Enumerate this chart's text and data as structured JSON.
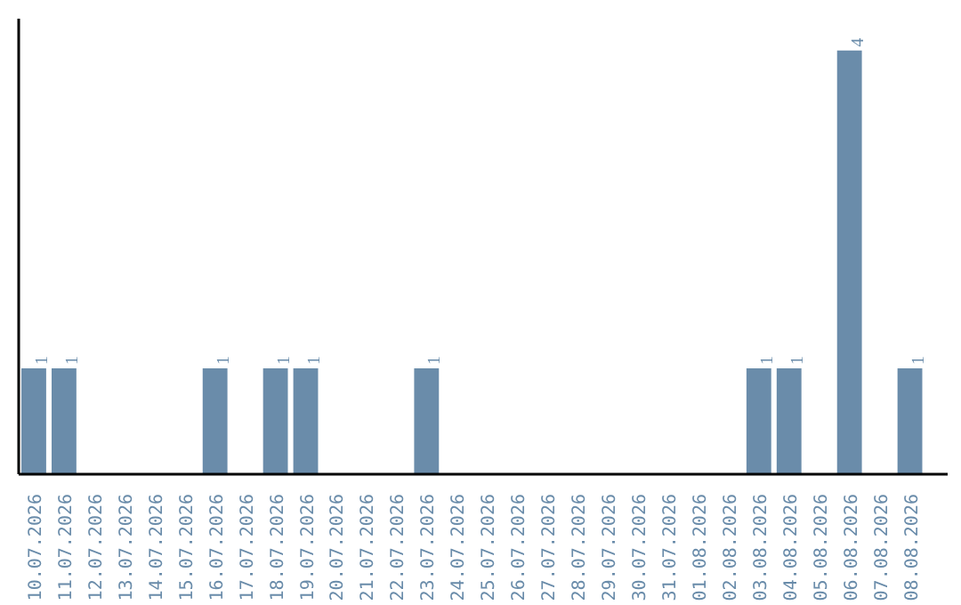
{
  "chart_data": {
    "type": "bar",
    "categories": [
      "10.07.2026",
      "11.07.2026",
      "12.07.2026",
      "13.07.2026",
      "14.07.2026",
      "15.07.2026",
      "16.07.2026",
      "17.07.2026",
      "18.07.2026",
      "19.07.2026",
      "20.07.2026",
      "21.07.2026",
      "22.07.2026",
      "23.07.2026",
      "24.07.2026",
      "25.07.2026",
      "26.07.2026",
      "27.07.2026",
      "28.07.2026",
      "29.07.2026",
      "30.07.2026",
      "31.07.2026",
      "01.08.2026",
      "02.08.2026",
      "03.08.2026",
      "04.08.2026",
      "05.08.2026",
      "06.08.2026",
      "07.08.2026",
      "08.08.2026"
    ],
    "values": [
      1,
      1,
      0,
      0,
      0,
      0,
      1,
      0,
      1,
      1,
      0,
      0,
      0,
      1,
      0,
      0,
      0,
      0,
      0,
      0,
      0,
      0,
      0,
      0,
      1,
      1,
      0,
      4,
      0,
      1
    ],
    "value_labels": [
      "1",
      "1",
      null,
      null,
      null,
      null,
      "1",
      null,
      "1",
      "1",
      null,
      null,
      null,
      "1",
      null,
      null,
      null,
      null,
      null,
      null,
      null,
      null,
      null,
      null,
      "1",
      "1",
      null,
      "4",
      null,
      "1"
    ],
    "color": "#6a8caa",
    "ylim": [
      0,
      4.3
    ],
    "grid": false
  }
}
